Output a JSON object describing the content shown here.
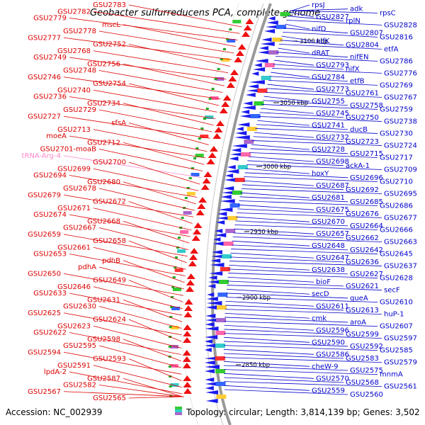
{
  "title": "Geobacter sulfurreducens PCA, complete genome",
  "accession": "Accession: NC_002939",
  "topology": "Topology: circular; Length: 3,814,139 bp; Genes: 3,502",
  "colors": {
    "left": "#dd0000",
    "right": "#0000cc",
    "trna": "#ff88cc",
    "backbone": "#888888"
  },
  "ticks": [
    "3100 kbp",
    "3050 kbp",
    "3000 kbp",
    "2950 kbp",
    "2900 kbp",
    "2850 kbp"
  ],
  "left_labels": [
    "GSU2783",
    "GSU2782",
    "GSU2779",
    "mscL",
    "GSU2778",
    "GSU2777",
    "GSU2752",
    "GSU2768",
    "GSU2749",
    "GSU2756",
    "GSU2748",
    "GSU2746",
    "GSU2754",
    "GSU2740",
    "GSU2736",
    "GSU2734",
    "GSU2729",
    "GSU2727",
    "sfsA",
    "GSU2713",
    "moeA",
    "GSU2712",
    "GSU2701-moaB",
    "tRNA-Arg-4",
    "GSU2700",
    "GSU2699",
    "GSU2694",
    "GSU2680",
    "GSU2678",
    "GSU2679",
    "GSU2672",
    "GSU2671",
    "GSU2674",
    "GSU2668",
    "GSU2667",
    "GSU2659",
    "GSU2658",
    "GSU2661",
    "GSU2653",
    "pdhB",
    "pdhA",
    "GSU2650",
    "GSU2649",
    "GSU2646",
    "GSU2633",
    "GSU2631",
    "GSU2630",
    "GSU2625",
    "GSU2624",
    "GSU2623",
    "GSU2622",
    "GSU2598",
    "GSU2595",
    "GSU2594",
    "GSU2593",
    "GSU2591",
    "lpdA-2",
    "GSU2587",
    "GSU2582",
    "GSU2567",
    "GSU2565"
  ],
  "right_labels": [
    "rpsJ",
    "adk",
    "rpsC",
    "GSU2827",
    "rplN",
    "GSU2828",
    "nifD",
    "GSU2807",
    "GSU2816",
    "nifK",
    "GSU2804",
    "etfA",
    "dRAT",
    "nifEN",
    "GSU2786",
    "GSU2793",
    "nifX",
    "GSU2776",
    "GSU2784",
    "etfB",
    "GSU2769",
    "GSU2773",
    "GSU2761",
    "GSU2767",
    "GSU2755",
    "GSU2758",
    "GSU2759",
    "GSU2745",
    "GSU2750",
    "GSU2738",
    "GSU2741",
    "ducB",
    "GSU2730",
    "GSU2732",
    "GSU2723",
    "GSU2724",
    "GSU2728",
    "GSU2715",
    "GSU2717",
    "GSU2698",
    "ackA-1",
    "GSU2709",
    "hoxY",
    "GSU2696",
    "GSU2710",
    "GSU2687",
    "GSU2692",
    "GSU2695",
    "GSU2681",
    "GSU2685",
    "GSU2686",
    "GSU2675",
    "GSU2676",
    "GSU2677",
    "GSU2670",
    "GSU2664",
    "GSU2666",
    "GSU2657",
    "GSU2662",
    "GSU2663",
    "GSU2648",
    "GSU2642",
    "GSU2645",
    "GSU2647",
    "GSU2636",
    "GSU2637",
    "GSU2638",
    "GSU2627",
    "GSU2628",
    "bioF",
    "GSU2621",
    "secF",
    "secD",
    "queA",
    "GSU2610",
    "GSU2611",
    "GSU2613",
    "huP-1",
    "cmk",
    "aroA",
    "GSU2607",
    "GSU2596",
    "GSU2599",
    "GSU2597",
    "GSU2590",
    "GSU2592",
    "GSU2585",
    "GSU2586",
    "GSU2583",
    "GSU2579",
    "cheW-9",
    "GSU2575",
    "mnmA",
    "GSU2570",
    "GSU2568",
    "GSU2561",
    "GSU2559",
    "GSU2560"
  ]
}
